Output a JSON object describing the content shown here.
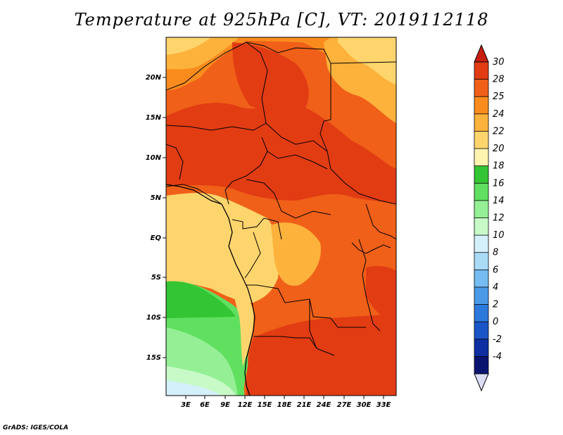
{
  "title": "Temperature at 925hPa [C], VT: 2019112118",
  "credit": "GrADS: IGES/COLA",
  "map": {
    "variable": "Temperature at 925hPa",
    "units": "C",
    "valid_time": "2019112118",
    "lat_ticks": [
      "20N",
      "15N",
      "10N",
      "5N",
      "EQ",
      "5S",
      "10S",
      "15S"
    ],
    "lon_ticks": [
      "3E",
      "6E",
      "9E",
      "12E",
      "15E",
      "18E",
      "21E",
      "24E",
      "27E",
      "30E",
      "33E"
    ]
  },
  "colorbar": {
    "labels": [
      "30",
      "28",
      "25",
      "24",
      "22",
      "20",
      "18",
      "16",
      "14",
      "12",
      "10",
      "8",
      "6",
      "4",
      "2",
      "0",
      "-2",
      "-4"
    ],
    "colors": [
      "#e23c13",
      "#f06018",
      "#fa8c1e",
      "#fdb23c",
      "#fed56d",
      "#fff4b0",
      "#33c533",
      "#60df60",
      "#95f095",
      "#c8fac8",
      "#d4f0fb",
      "#a9dbf7",
      "#74bcf1",
      "#4a9ae8",
      "#2c79dc",
      "#1a55c7",
      "#0d2fa2",
      "#0a1470"
    ],
    "top_arrow_color": "#c81e10",
    "bottom_arrow_color": "#dcdcf5"
  }
}
